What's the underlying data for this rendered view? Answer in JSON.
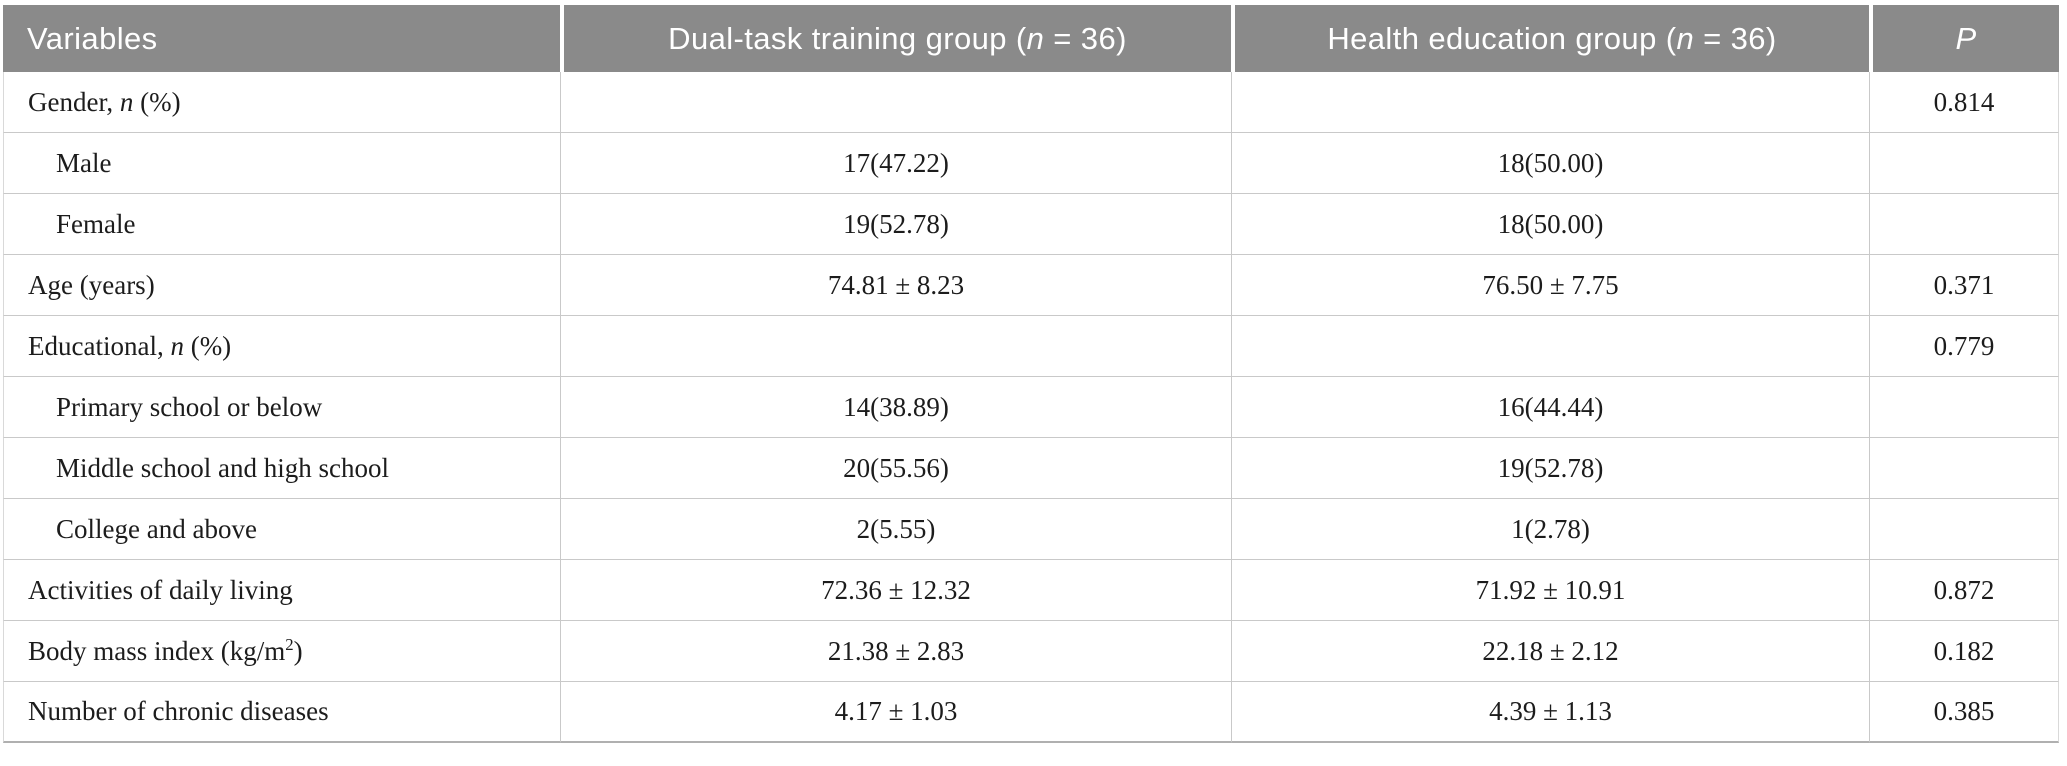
{
  "colors": {
    "header_bg": "#8a8a8a",
    "header_text": "#ffffff",
    "body_text": "#1c1c1c",
    "row_border": "#c9c9c9",
    "bottom_border": "#b0b0b0"
  },
  "table": {
    "columns": [
      {
        "label": "Variables",
        "align": "left"
      },
      {
        "label": "Dual-task training group (*n* = 36)",
        "align": "center"
      },
      {
        "label": "Health education group (*n* = 36)",
        "align": "center"
      },
      {
        "label": "*P*",
        "align": "center"
      }
    ],
    "rows": [
      {
        "variable": "Gender, *n* (%)",
        "indent": false,
        "dual": "",
        "health": "",
        "p": "0.814"
      },
      {
        "variable": "Male",
        "indent": true,
        "dual": "17(47.22)",
        "health": "18(50.00)",
        "p": ""
      },
      {
        "variable": "Female",
        "indent": true,
        "dual": "19(52.78)",
        "health": "18(50.00)",
        "p": ""
      },
      {
        "variable": "Age (years)",
        "indent": false,
        "dual": "74.81 ± 8.23",
        "health": "76.50 ± 7.75",
        "p": "0.371"
      },
      {
        "variable": "Educational, *n* (%)",
        "indent": false,
        "dual": "",
        "health": "",
        "p": "0.779"
      },
      {
        "variable": "Primary school or below",
        "indent": true,
        "dual": "14(38.89)",
        "health": "16(44.44)",
        "p": ""
      },
      {
        "variable": "Middle school and high school",
        "indent": true,
        "dual": "20(55.56)",
        "health": "19(52.78)",
        "p": ""
      },
      {
        "variable": "College and above",
        "indent": true,
        "dual": "2(5.55)",
        "health": "1(2.78)",
        "p": ""
      },
      {
        "variable": "Activities of daily living",
        "indent": false,
        "dual": "72.36 ± 12.32",
        "health": "71.92 ± 10.91",
        "p": "0.872"
      },
      {
        "variable": "Body mass index (kg/m^2^)",
        "indent": false,
        "dual": "21.38 ± 2.83",
        "health": "22.18 ± 2.12",
        "p": "0.182"
      },
      {
        "variable": "Number of chronic diseases",
        "indent": false,
        "dual": "4.17 ± 1.03",
        "health": "4.39 ± 1.13",
        "p": "0.385"
      }
    ]
  }
}
